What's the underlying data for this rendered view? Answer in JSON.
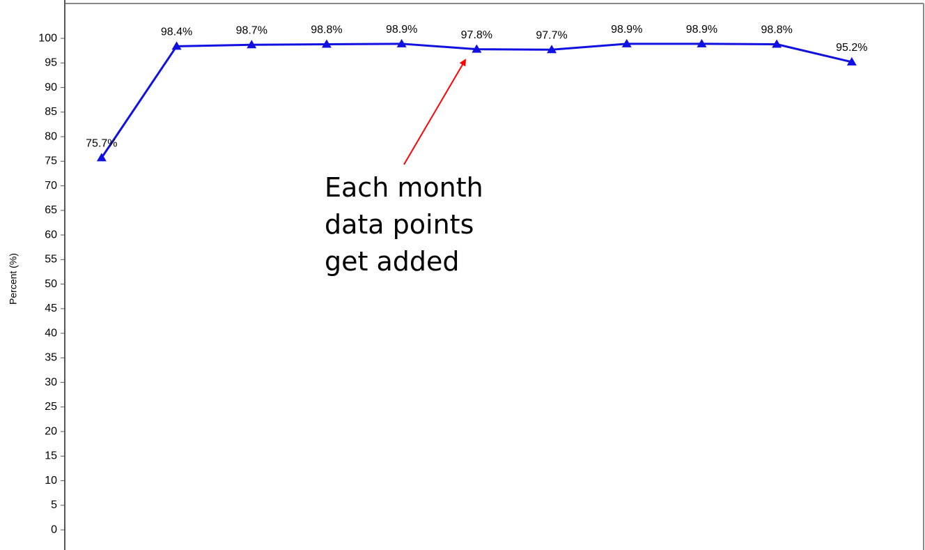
{
  "chart_data": {
    "type": "line",
    "y_label": "Percent (%)",
    "categories": [
      null,
      null,
      null,
      null,
      null,
      null,
      null,
      null,
      null,
      null,
      null
    ],
    "series": [
      {
        "name": null,
        "color": "#1010e0",
        "values": [
          75.7,
          98.4,
          98.7,
          98.8,
          98.9,
          97.8,
          97.7,
          98.9,
          98.9,
          98.8,
          95.2
        ],
        "value_labels": [
          "75.7%",
          "98.4%",
          "98.7%",
          "98.8%",
          "98.9%",
          "97.8%",
          "97.7%",
          "98.9%",
          "98.9%",
          "98.8%",
          "95.2%"
        ]
      }
    ],
    "ylim": [
      -4.1,
      107.1
    ],
    "yticks": [
      0,
      5,
      10,
      15,
      20,
      25,
      30,
      35,
      40,
      45,
      50,
      55,
      60,
      65,
      70,
      75,
      80,
      85,
      90,
      95,
      100
    ],
    "grid": false,
    "annotation": {
      "lines": [
        "Each month",
        "data points",
        "get added"
      ],
      "color": "#ff0000"
    }
  }
}
